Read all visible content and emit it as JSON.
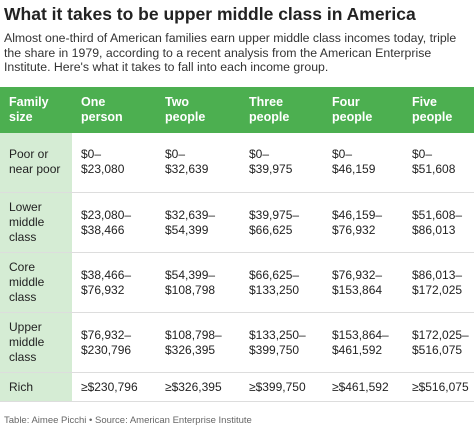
{
  "header": {
    "title": "What it takes to be upper middle class in America",
    "subtitle": "Almost one-third of American families earn upper middle class incomes today, triple the share in 1979, according to a recent analysis from the American Enterprise Institute. Here's what it takes to fall into each income group."
  },
  "table": {
    "columns": [
      "Family size",
      "One person",
      "Two people",
      "Three people",
      "Four people",
      "Five people"
    ],
    "rows": [
      [
        "Poor or near poor",
        [
          "$0–",
          "$23,080"
        ],
        [
          "$0–",
          "$32,639"
        ],
        [
          "$0–",
          "$39,975"
        ],
        [
          "$0–",
          "$46,159"
        ],
        [
          "$0–",
          "$51,608"
        ]
      ],
      [
        "Lower middle class",
        [
          "$23,080–",
          "$38,466"
        ],
        [
          "$32,639–",
          "$54,399"
        ],
        [
          "$39,975–",
          "$66,625"
        ],
        [
          "$46,159–",
          "$76,932"
        ],
        [
          "$51,608–",
          "$86,013"
        ]
      ],
      [
        "Core middle class",
        [
          "$38,466–",
          "$76,932"
        ],
        [
          "$54,399–",
          "$108,798"
        ],
        [
          "$66,625–",
          "$133,250"
        ],
        [
          "$76,932–",
          "$153,864"
        ],
        [
          "$86,013–",
          "$172,025"
        ]
      ],
      [
        "Upper middle class",
        [
          "$76,932–",
          "$230,796"
        ],
        [
          "$108,798–",
          "$326,395"
        ],
        [
          "$133,250–",
          "$399,750"
        ],
        [
          "$153,864–",
          "$461,592"
        ],
        [
          "$172,025–",
          "$516,075"
        ]
      ],
      [
        "Rich",
        [
          "≥$230,796"
        ],
        [
          "≥$326,395"
        ],
        [
          "≥$399,750"
        ],
        [
          "≥$461,592"
        ],
        [
          "≥$516,075"
        ]
      ]
    ]
  },
  "footer": "Table: Aimee Picchi • Source: American Enterprise Institute"
}
